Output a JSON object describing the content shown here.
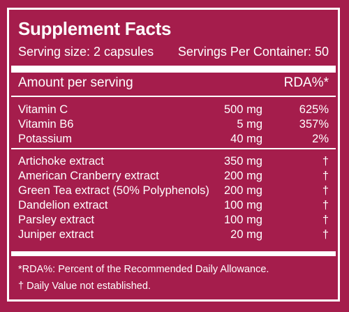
{
  "title": "Supplement Facts",
  "serving_size": "Serving size: 2 capsules",
  "servings_per_container": "Servings Per Container: 50",
  "amount_header": "Amount per serving",
  "rda_header": "RDA%*",
  "vitamins": [
    {
      "name": "Vitamin C",
      "amount": "500 mg",
      "rda": "625%"
    },
    {
      "name": "Vitamin B6",
      "amount": "5 mg",
      "rda": "357%"
    },
    {
      "name": "Potassium",
      "amount": "40 mg",
      "rda": "2%"
    }
  ],
  "extracts": [
    {
      "name": "Artichoke extract",
      "amount": "350 mg",
      "rda": "†"
    },
    {
      "name": "American Cranberry extract",
      "amount": "200 mg",
      "rda": "†"
    },
    {
      "name": "Green Tea extract (50% Polyphenols)",
      "amount": "200 mg",
      "rda": "†"
    },
    {
      "name": "Dandelion extract",
      "amount": "100 mg",
      "rda": "†"
    },
    {
      "name": "Parsley extract",
      "amount": "100 mg",
      "rda": "†"
    },
    {
      "name": "Juniper extract",
      "amount": "20 mg",
      "rda": "†"
    }
  ],
  "footnotes": {
    "rda": "*RDA%: Percent of the Recommended Daily Allowance.",
    "dagger": "† Daily Value not established."
  },
  "colors": {
    "background": "#a51d4c",
    "text": "#ffffff"
  }
}
